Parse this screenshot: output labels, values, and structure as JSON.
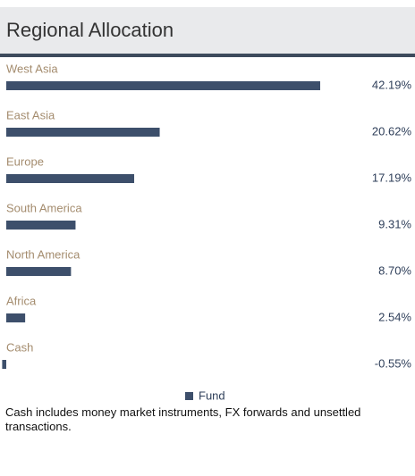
{
  "chart_data": {
    "type": "bar",
    "orientation": "horizontal",
    "title": "Regional Allocation",
    "categories": [
      "West Asia",
      "East Asia",
      "Europe",
      "South America",
      "North America",
      "Africa",
      "Cash"
    ],
    "series": [
      {
        "name": "Fund",
        "color": "#3d4f6b",
        "values": [
          42.19,
          20.62,
          17.19,
          9.31,
          8.7,
          2.54,
          -0.55
        ],
        "value_labels": [
          "42.19%",
          "20.62%",
          "17.19%",
          "9.31%",
          "8.70%",
          "2.54%",
          "-0.55%"
        ]
      }
    ],
    "legend": "bottom",
    "note": "Cash includes money market instruments, FX forwards and unsettled transactions."
  }
}
